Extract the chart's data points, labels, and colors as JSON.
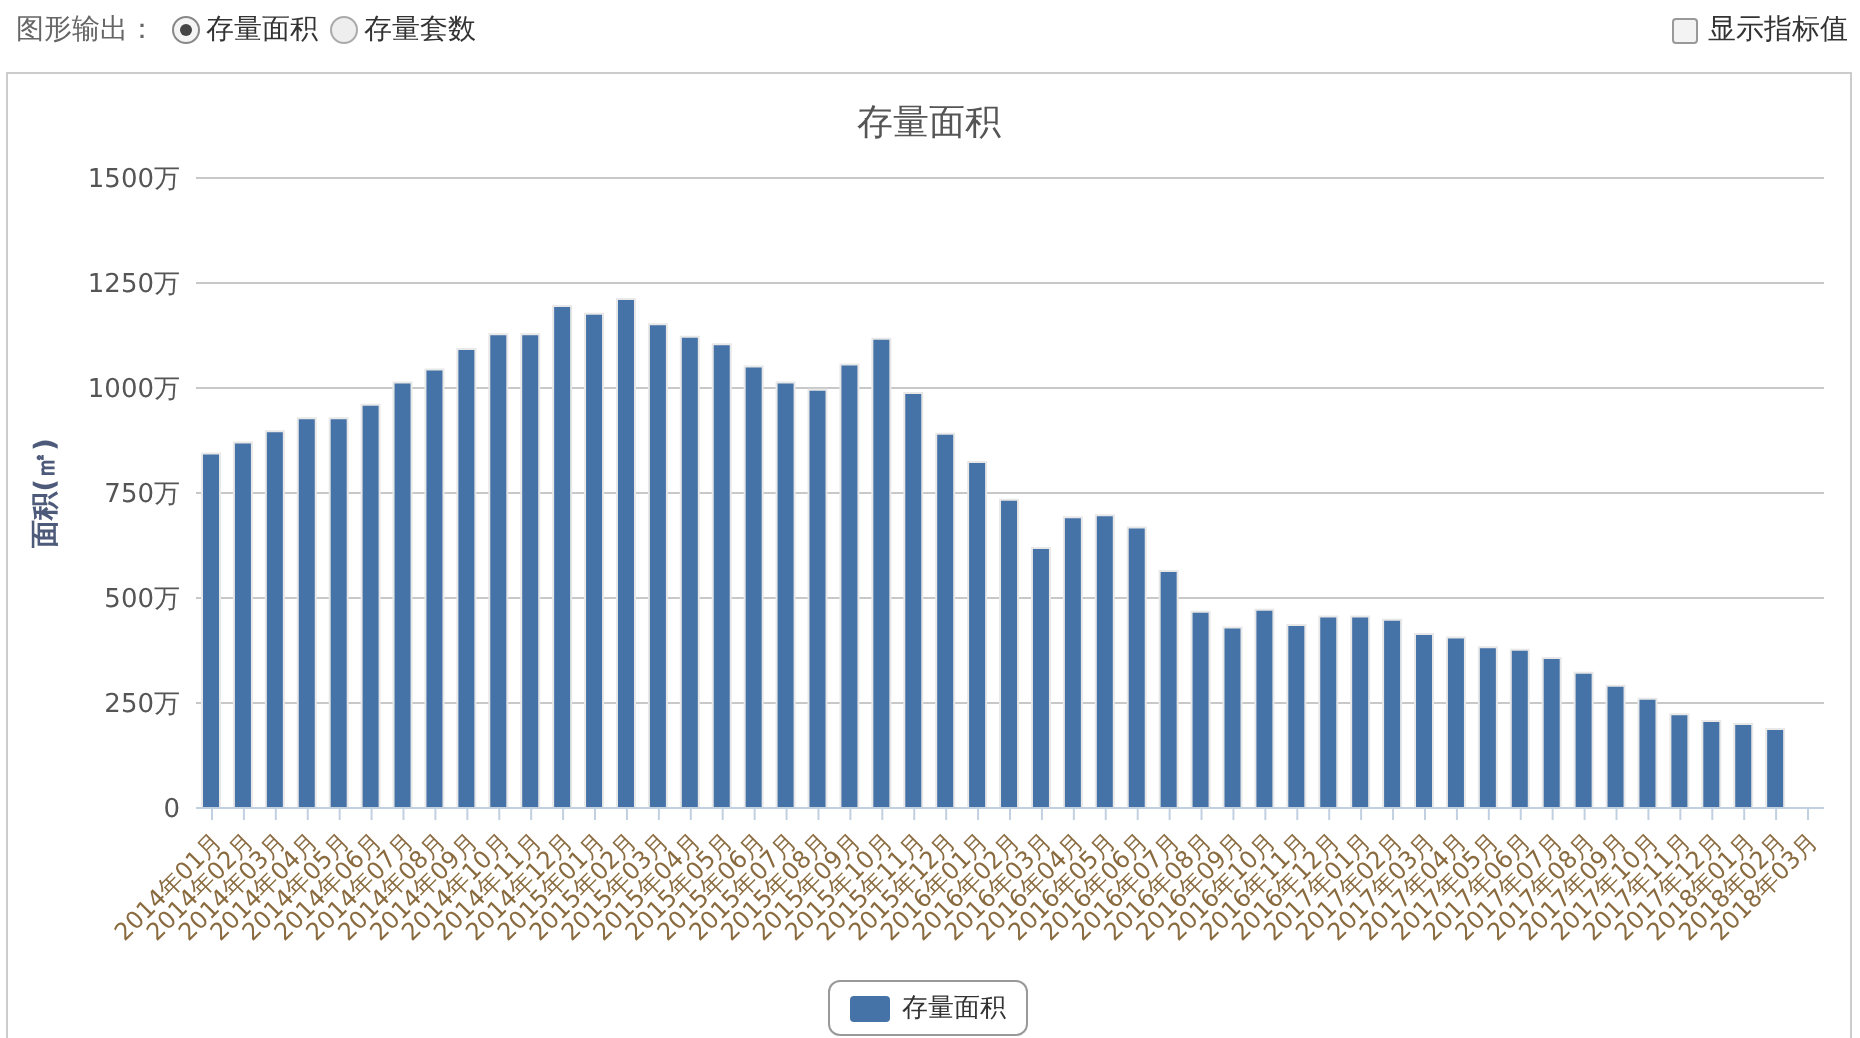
{
  "chart_data": {
    "type": "bar",
    "title": "存量面积",
    "ylabel": "面积(㎡)",
    "annotations": [
      "图形输出：",
      "存量面积",
      "存量套数",
      "显示指标值"
    ],
    "categories": [
      "2014年01月",
      "2014年02月",
      "2014年03月",
      "2014年04月",
      "2014年05月",
      "2014年06月",
      "2014年07月",
      "2014年08月",
      "2014年09月",
      "2014年10月",
      "2014年11月",
      "2014年12月",
      "2015年01月",
      "2015年02月",
      "2015年03月",
      "2015年04月",
      "2015年05月",
      "2015年06月",
      "2015年07月",
      "2015年08月",
      "2015年09月",
      "2015年10月",
      "2015年11月",
      "2015年12月",
      "2016年01月",
      "2016年02月",
      "2016年03月",
      "2016年04月",
      "2016年05月",
      "2016年06月",
      "2016年07月",
      "2016年08月",
      "2016年09月",
      "2016年10月",
      "2016年11月",
      "2016年12月",
      "2017年01月",
      "2017年02月",
      "2017年03月",
      "2017年04月",
      "2017年05月",
      "2017年06月",
      "2017年07月",
      "2017年08月",
      "2017年09月",
      "2017年10月",
      "2017年11月",
      "2017年12月",
      "2018年01月",
      "2018年02月",
      "2018年03月"
    ],
    "series": [
      {
        "name": "存量面积",
        "color": "#4572a7",
        "values": [
          844,
          870,
          897,
          928,
          928,
          960,
          1013,
          1044,
          1093,
          1128,
          1128,
          1195,
          1177,
          1212,
          1152,
          1122,
          1104,
          1051,
          1013,
          996,
          1056,
          1117,
          988,
          891,
          824,
          734,
          619,
          692,
          697,
          668,
          564,
          467,
          430,
          472,
          436,
          456,
          456,
          448,
          414,
          406,
          383,
          377,
          357,
          322,
          291,
          260,
          223,
          207,
          200,
          188,
          null
        ]
      }
    ],
    "ylim": [
      0,
      1500
    ],
    "yticks": [
      0,
      {
        "value": 250,
        "label": "250万"
      },
      {
        "value": 500,
        "label": "500万"
      },
      {
        "value": 750,
        "label": "750万"
      },
      {
        "value": 1000,
        "label": "1000万"
      },
      {
        "value": 1250,
        "label": "1250万"
      },
      {
        "value": 1500,
        "label": "1500万"
      }
    ],
    "grid": "y",
    "legend": "bottom"
  }
}
